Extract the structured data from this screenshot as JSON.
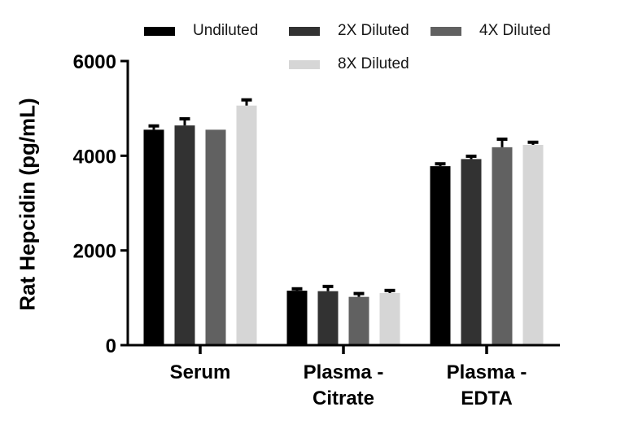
{
  "chart_data": {
    "type": "bar",
    "title": "",
    "ylabel": "Rat Hepcidin (pg/mL)",
    "xlabel": "",
    "ylim": [
      0,
      6000
    ],
    "yticks": [
      0,
      2000,
      4000,
      6000
    ],
    "grid": false,
    "legend_position": "top",
    "bar_unit": "pg/mL",
    "categories": [
      "Serum",
      "Plasma - Citrate",
      "Plasma - EDTA"
    ],
    "category_display": [
      [
        "Serum"
      ],
      [
        "Plasma -",
        "Citrate"
      ],
      [
        "Plasma -",
        "EDTA"
      ]
    ],
    "series": [
      {
        "name": "Undiluted",
        "color": "#000000",
        "values": [
          4550,
          1150,
          3780
        ],
        "errors": [
          80,
          40,
          50
        ]
      },
      {
        "name": "2X Diluted",
        "color": "#323232",
        "values": [
          4640,
          1140,
          3930
        ],
        "errors": [
          140,
          100,
          60
        ]
      },
      {
        "name": "4X Diluted",
        "color": "#616161",
        "values": [
          4550,
          1020,
          4180
        ],
        "errors": [
          0,
          70,
          170
        ]
      },
      {
        "name": "8X Diluted",
        "color": "#d6d6d6",
        "values": [
          5060,
          1100,
          4230
        ],
        "errors": [
          120,
          55,
          55
        ]
      }
    ],
    "axis_color": "#000000",
    "error_bar_color": "#000000"
  }
}
